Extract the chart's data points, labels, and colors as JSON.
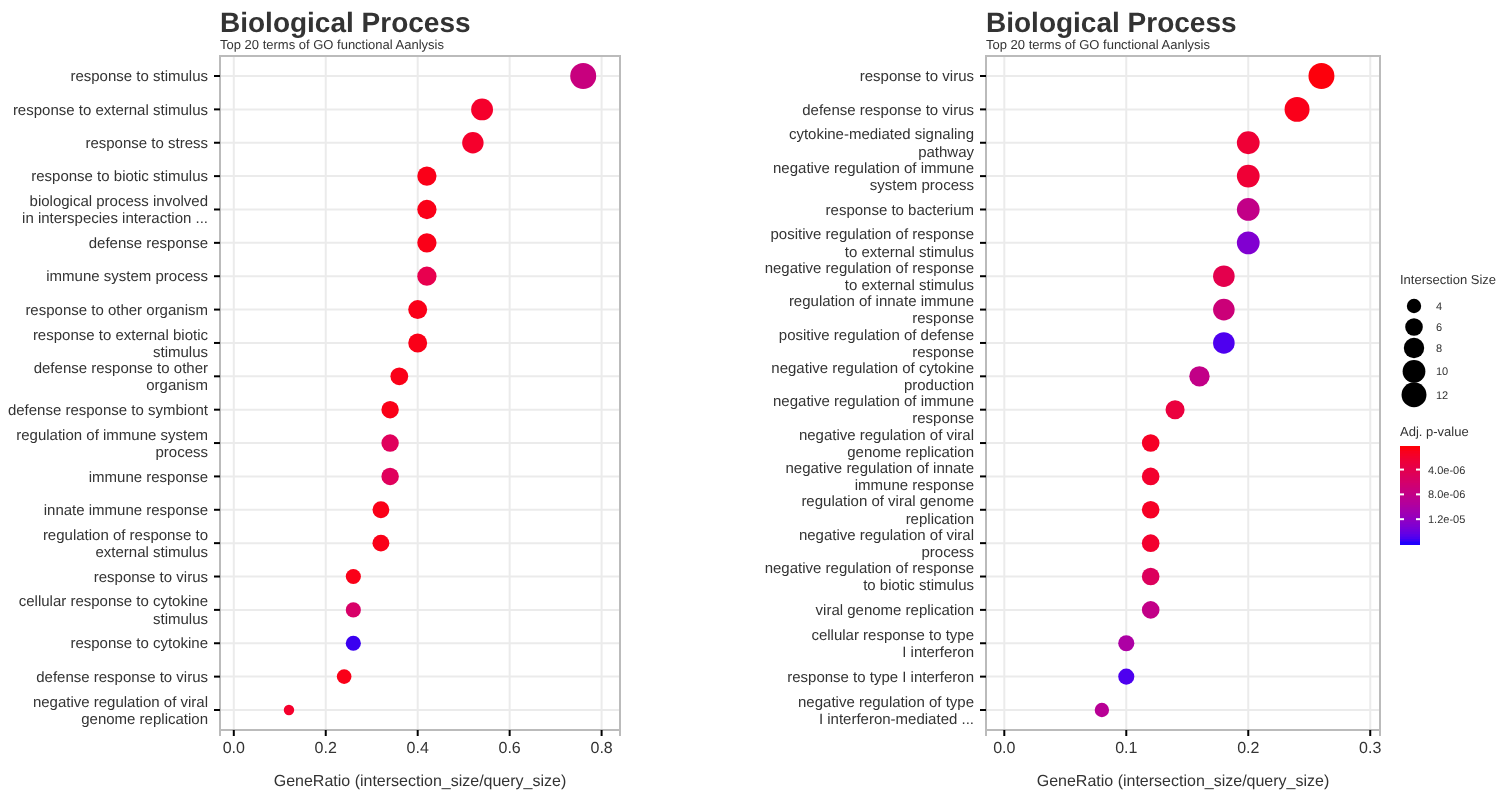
{
  "chart_data": [
    {
      "type": "bubble",
      "title": "Biological Process",
      "subtitle": "Top 20 terms of GO functional Aanlysis",
      "xlabel": "GeneRatio (intersection_size/query_size)",
      "orientation": "horizontal",
      "categories": [
        "response to stimulus",
        "response to external stimulus",
        "response to stress",
        "response to biotic stimulus",
        "biological process involved\nin interspecies interaction ...",
        "defense response",
        "immune system process",
        "response to other organism",
        "response to external biotic\nstimulus",
        "defense response to other\norganism",
        "defense response to symbiont",
        "regulation of immune system\nprocess",
        "immune response",
        "innate immune response",
        "regulation of response to\nexternal stimulus",
        "response to virus",
        "cellular response to cytokine\nstimulus",
        "response to cytokine",
        "defense response to virus",
        "negative regulation of viral\ngenome replication"
      ],
      "values": [
        0.76,
        0.54,
        0.52,
        0.42,
        0.42,
        0.42,
        0.42,
        0.4,
        0.4,
        0.36,
        0.34,
        0.34,
        0.34,
        0.32,
        0.32,
        0.26,
        0.26,
        0.26,
        0.24,
        0.12
      ],
      "sizes": [
        1,
        0.71,
        0.68,
        0.55,
        0.55,
        0.55,
        0.55,
        0.53,
        0.53,
        0.47,
        0.45,
        0.45,
        0.45,
        0.42,
        0.42,
        0.34,
        0.34,
        0.34,
        0.32,
        0.16
      ],
      "colors": [
        "#c8007e",
        "#f5002c",
        "#f5002c",
        "#fa0018",
        "#fa0018",
        "#fa0018",
        "#e8004f",
        "#fa0018",
        "#fa0018",
        "#fa0018",
        "#fa0018",
        "#e0005c",
        "#e0005c",
        "#fa0018",
        "#fa0018",
        "#fa0018",
        "#d80068",
        "#3a00f0",
        "#fa0018",
        "#f5002c"
      ],
      "xlim": [
        -0.03,
        0.84
      ],
      "xticks": [
        {
          "value": 0,
          "label": "0.0"
        },
        {
          "value": 0.2,
          "label": "0.2"
        },
        {
          "value": 0.4,
          "label": "0.4"
        },
        {
          "value": 0.6,
          "label": "0.6"
        },
        {
          "value": 0.8,
          "label": "0.8"
        }
      ],
      "grid": true
    },
    {
      "type": "bubble",
      "title": "Biological Process",
      "subtitle": "Top 20 terms of GO functional Aanlysis",
      "xlabel": "GeneRatio (intersection_size/query_size)",
      "orientation": "horizontal",
      "categories": [
        "response to virus",
        "defense response to virus",
        "cytokine-mediated signaling\npathway",
        "negative regulation of immune\nsystem process",
        "response to bacterium",
        "positive regulation of response\nto external stimulus",
        "negative regulation of response\nto external stimulus",
        "regulation of innate immune\nresponse",
        "positive regulation of defense\nresponse",
        "negative regulation of cytokine\nproduction",
        "negative regulation of immune\nresponse",
        "negative regulation of viral\ngenome replication",
        "negative regulation of innate\nimmune response",
        "regulation of viral genome\nreplication",
        "negative regulation of viral\nprocess",
        "negative regulation of response\nto biotic stimulus",
        "viral genome replication",
        "cellular response to type\nI interferon",
        "response to type I interferon",
        "negative regulation of type\nI interferon-mediated ..."
      ],
      "values": [
        0.26,
        0.24,
        0.2,
        0.2,
        0.2,
        0.2,
        0.18,
        0.18,
        0.18,
        0.16,
        0.14,
        0.12,
        0.12,
        0.12,
        0.12,
        0.12,
        0.12,
        0.1,
        0.1,
        0.08
      ],
      "sizes": [
        13,
        12,
        10,
        10,
        10,
        10,
        9,
        9,
        9,
        8,
        7,
        6,
        6,
        6,
        6,
        6,
        6,
        5,
        5,
        4
      ],
      "cvalues": [
        5e-07,
        1e-06,
        2.5e-06,
        2.5e-06,
        8e-06,
        1.3e-05,
        4e-06,
        7e-06,
        1.5e-05,
        8e-06,
        3e-06,
        1.5e-06,
        2e-06,
        1.5e-06,
        2e-06,
        5e-06,
        8e-06,
        1e-05,
        1.5e-05,
        9e-06
      ],
      "xlim": [
        -0.015,
        0.308
      ],
      "xticks": [
        {
          "value": 0,
          "label": "0.0"
        },
        {
          "value": 0.1,
          "label": "0.1"
        },
        {
          "value": 0.2,
          "label": "0.2"
        },
        {
          "value": 0.3,
          "label": "0.3"
        }
      ],
      "grid": true,
      "legend_title": "Intersection Size",
      "size_legend": [
        4,
        6,
        8,
        10,
        12
      ],
      "clabel": "Adj. p-value",
      "clim": [
        2e-07,
        1.6e-05
      ],
      "cticks": [
        {
          "value": 4e-06,
          "label": "4.0e-06"
        },
        {
          "value": 8e-06,
          "label": "8.0e-06"
        },
        {
          "value": 1.2e-05,
          "label": "1.2e-05"
        }
      ]
    }
  ]
}
